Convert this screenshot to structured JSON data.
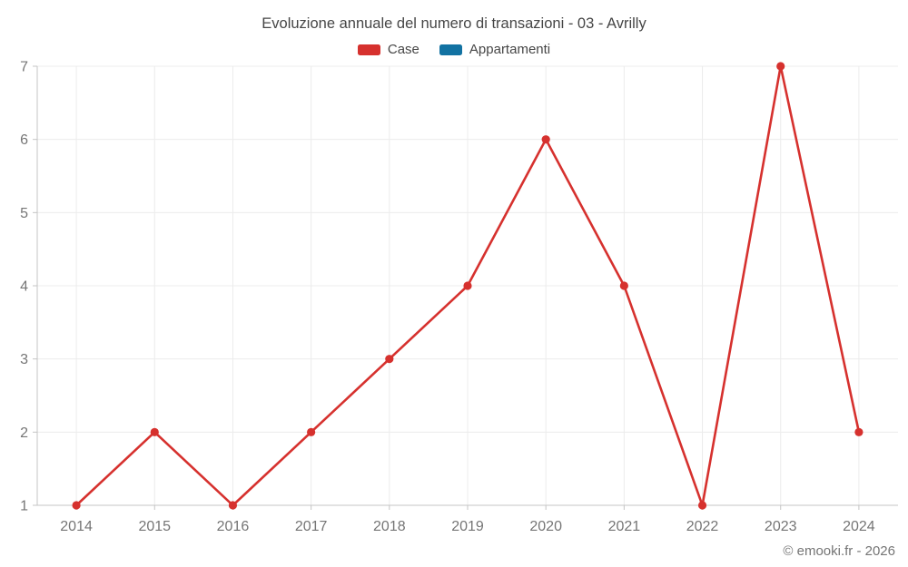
{
  "title": "Evoluzione annuale del numero di transazioni - 03 - Avrilly",
  "footer": "© emooki.fr - 2026",
  "legend": {
    "items": [
      {
        "label": "Case",
        "color": "#d6312e"
      },
      {
        "label": "Appartamenti",
        "color": "#1272a2"
      }
    ]
  },
  "colors": {
    "series_case": "#d6312e",
    "series_appartamenti": "#1272a2",
    "grid_line": "#ececec",
    "axis_line": "#c4c4c4",
    "axis_label": "#757575",
    "title_text": "#464646",
    "background": "#ffffff"
  },
  "chart_data": {
    "type": "line",
    "title": "Evoluzione annuale del numero di transazioni - 03 - Avrilly",
    "x": [
      2014,
      2015,
      2016,
      2017,
      2018,
      2019,
      2020,
      2021,
      2022,
      2023,
      2024
    ],
    "series": [
      {
        "name": "Case",
        "color": "#d6312e",
        "values": [
          1,
          2,
          1,
          2,
          3,
          4,
          6,
          4,
          1,
          7,
          2
        ]
      },
      {
        "name": "Appartamenti",
        "color": "#1272a2",
        "values": []
      }
    ],
    "xlabel": "",
    "ylabel": "",
    "ylim": [
      1,
      7
    ],
    "yticks": [
      1,
      2,
      3,
      4,
      5,
      6,
      7
    ],
    "grid": true,
    "legend_position": "top",
    "marker": "circle"
  }
}
